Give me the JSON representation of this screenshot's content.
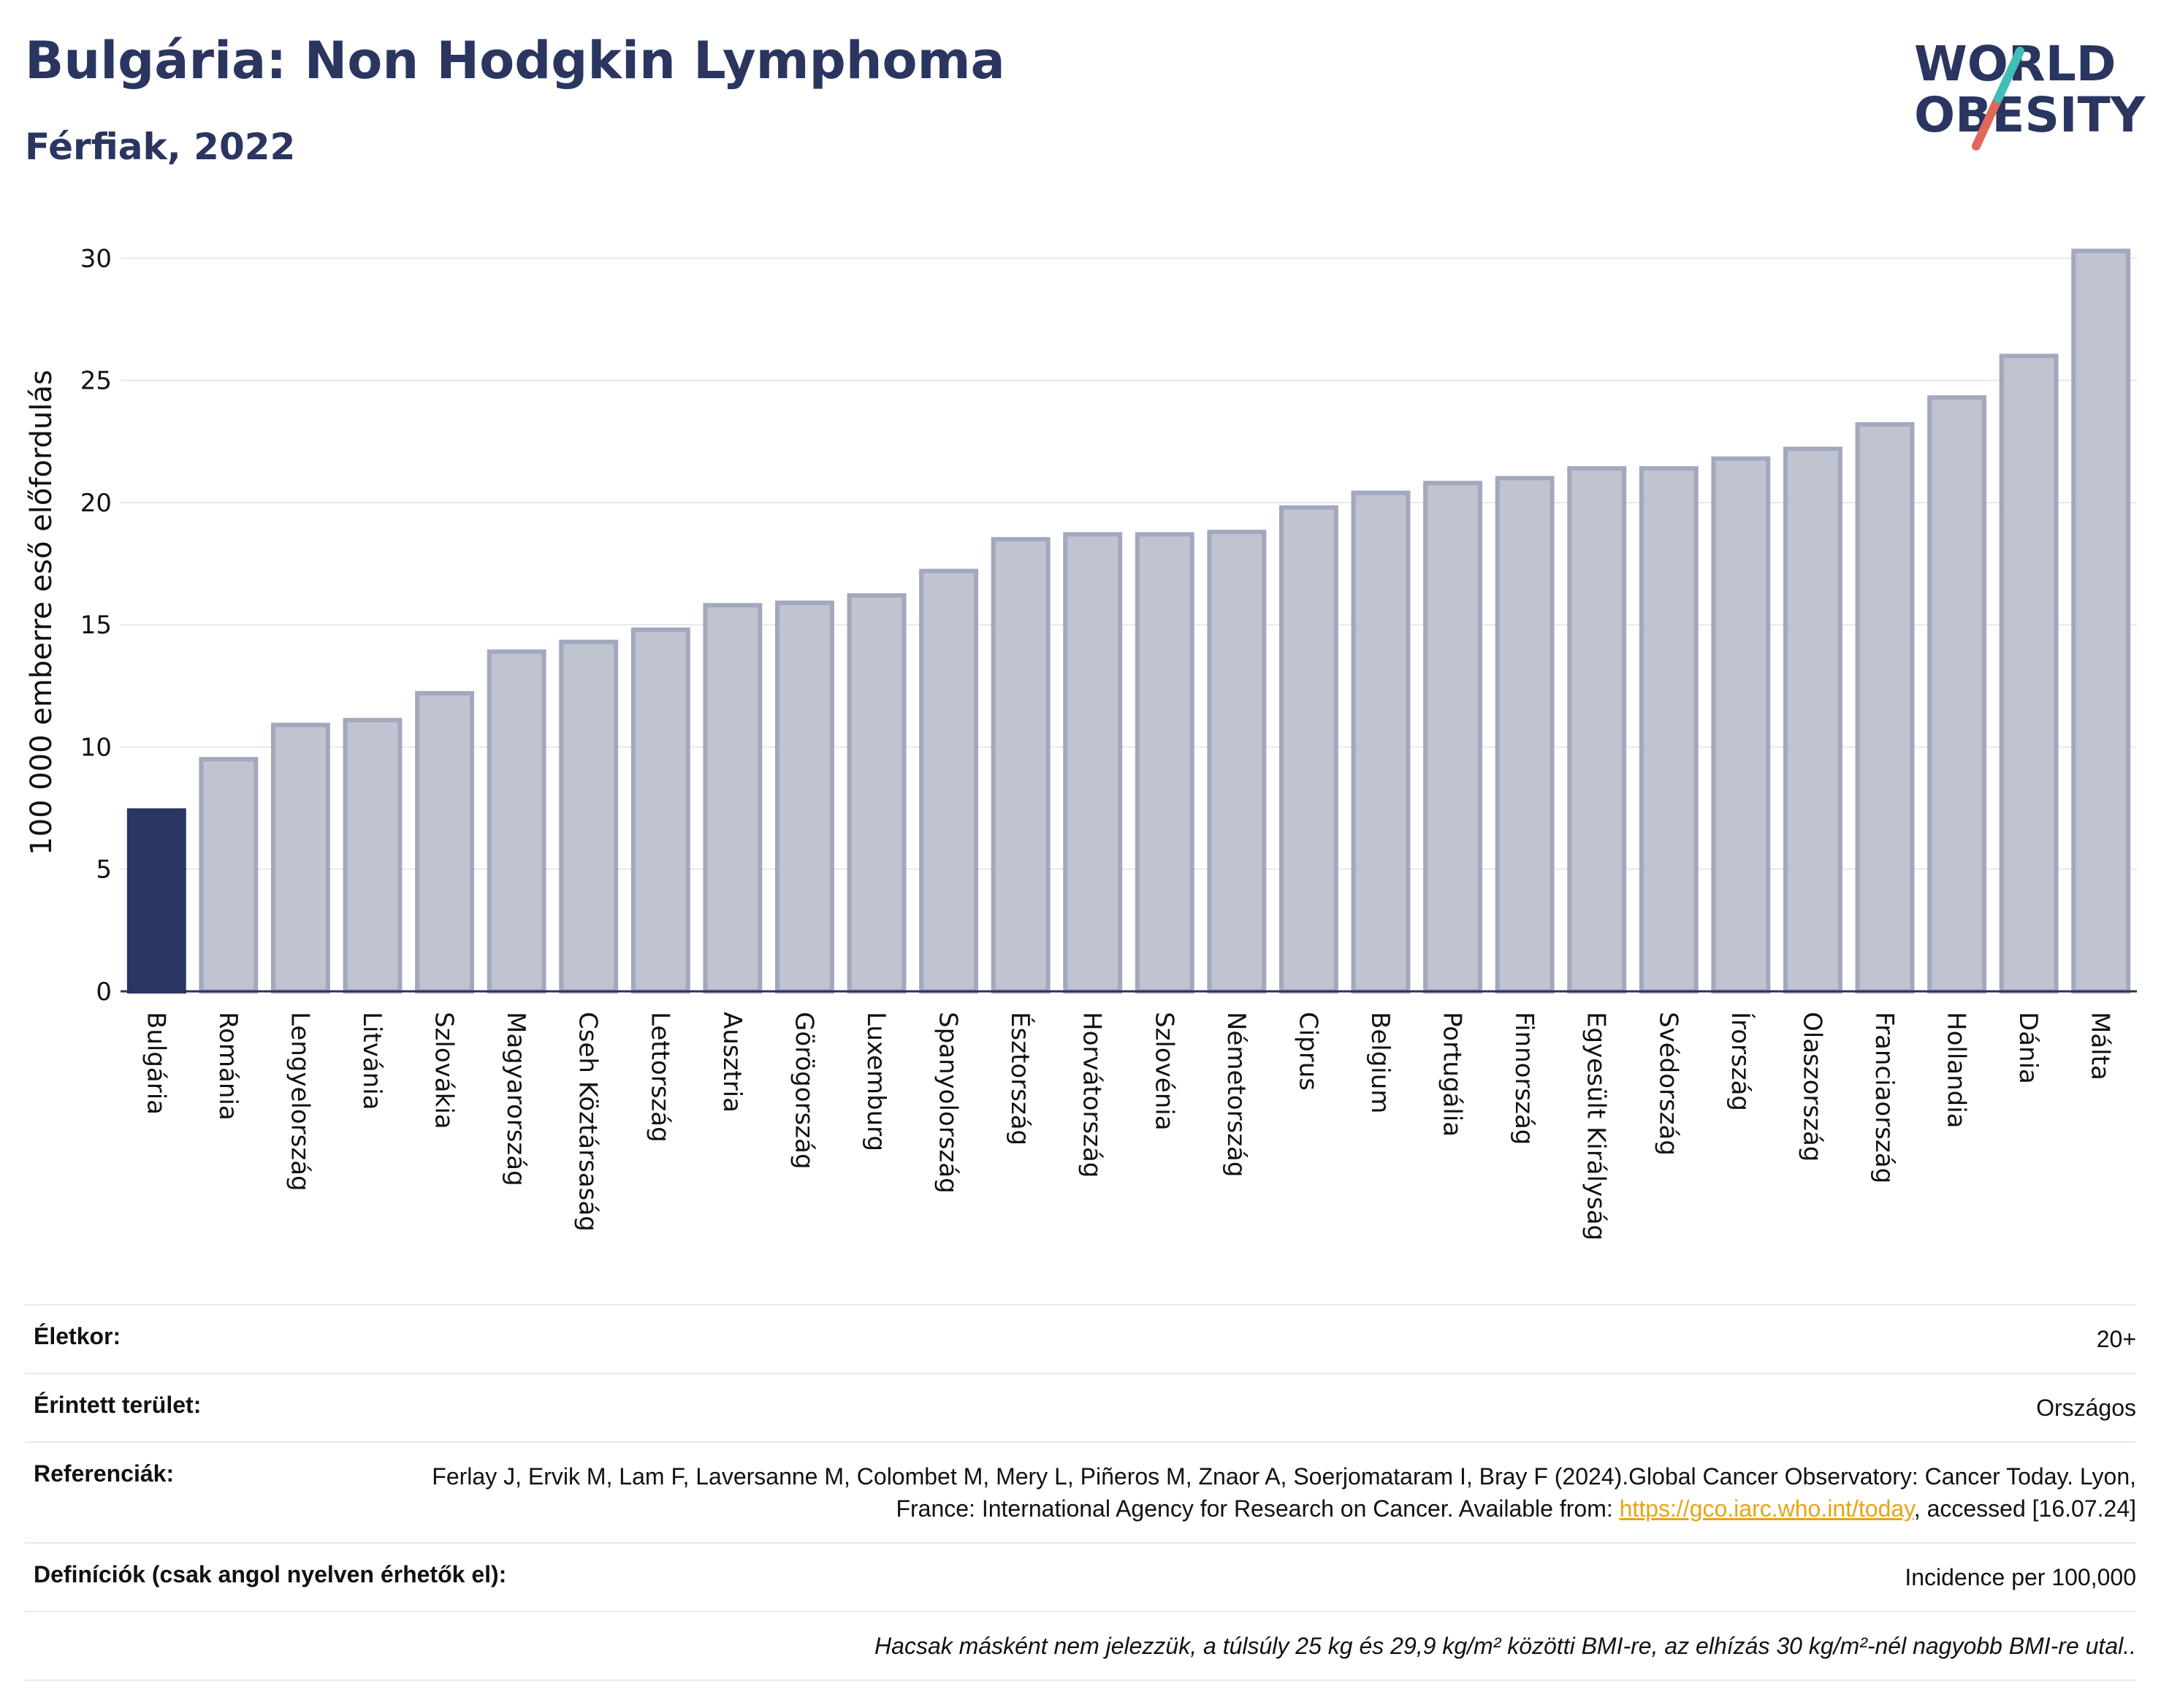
{
  "header": {
    "title": "Bulgária: Non Hodgkin Lymphoma",
    "subtitle": "Férfiak, 2022",
    "logo_line1": "WORLD",
    "logo_line2": "OBESITY"
  },
  "colors": {
    "highlight": "#2b3762",
    "bar_fill": "#c0c4d1",
    "bar_stroke": "#a2a8bd",
    "text": "#2a3560",
    "logo_teal": "#3fbfb6",
    "logo_red": "#e0685a"
  },
  "chart_data": {
    "type": "bar",
    "ylabel": "100 000 emberre eső előfordulás",
    "ylim": [
      0,
      31
    ],
    "yticks": [
      0,
      5,
      10,
      15,
      20,
      25,
      30
    ],
    "grid": true,
    "highlight_category": "Bulgária",
    "categories": [
      "Bulgária",
      "Románia",
      "Lengyelország",
      "Litvánia",
      "Szlovákia",
      "Magyarország",
      "Cseh Köztársaság",
      "Lettország",
      "Ausztria",
      "Görögország",
      "Luxemburg",
      "Spanyolország",
      "Észtország",
      "Horvátország",
      "Szlovénia",
      "Németország",
      "Ciprus",
      "Belgium",
      "Portugália",
      "Finnország",
      "Egyesült Királyság",
      "Svédország",
      "Írország",
      "Olaszország",
      "Franciaország",
      "Hollandia",
      "Dánia",
      "Málta"
    ],
    "values": [
      7.4,
      9.5,
      10.9,
      11.1,
      12.2,
      13.9,
      14.3,
      14.8,
      15.8,
      15.9,
      16.2,
      17.2,
      18.5,
      18.7,
      18.7,
      18.8,
      19.8,
      20.4,
      20.8,
      21.0,
      21.4,
      21.4,
      21.8,
      22.2,
      23.2,
      24.3,
      26.0,
      30.3
    ]
  },
  "info": {
    "age_label": "Életkor:",
    "age_value": "20+",
    "area_label": "Érintett terület:",
    "area_value": "Országos",
    "ref_label": "Referenciák:",
    "ref_text": "Ferlay J, Ervik M, Lam F, Laversanne M, Colombet M, Mery L, Piñeros M, Znaor A, Soerjomataram I, Bray F (2024).Global Cancer Observatory: Cancer Today. Lyon, France: International Agency for Research on Cancer. Available from: ",
    "ref_link": "https://gco.iarc.who.int/today",
    "ref_tail": ", accessed [16.07.24]",
    "def_label": "Definíciók (csak angol nyelven érhetők el):",
    "def_value": "Incidence per 100,000",
    "note": "Hacsak másként nem jelezzük, a túlsúly 25 kg és 29,9 kg/m² közötti BMI-re, az elhízás 30 kg/m²-nél nagyobb BMI-re utal.."
  }
}
